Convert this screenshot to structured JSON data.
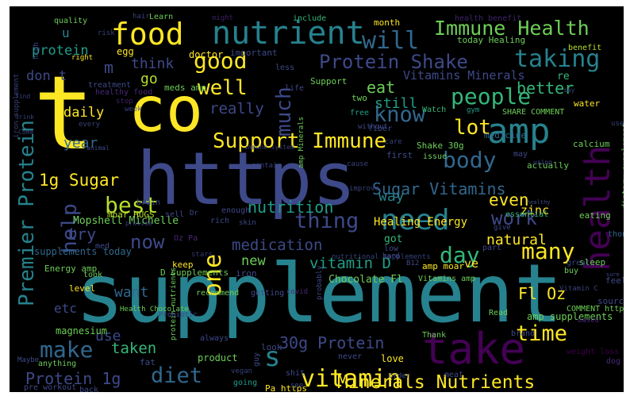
{
  "palette": {
    "background": "#000000",
    "yellow": "#fde725",
    "lime": "#b5de2b",
    "green": "#6ece58",
    "sea": "#35b779",
    "teal": "#1f9e89",
    "cyan": "#26828e",
    "blue": "#31688e",
    "indigo": "#3e4989",
    "violet": "#482878",
    "purple": "#440154"
  },
  "words": [
    "supplement",
    "https",
    "t",
    "co",
    "take",
    "amp",
    "nutrient",
    "food",
    "health",
    "need",
    "Protein Shake",
    "Immune Health",
    "Support Immune",
    "people",
    "taking",
    "will",
    "know",
    "good",
    "body",
    "one",
    "time",
    "vitamin",
    "Premier Protein",
    "diet",
    "make",
    "day",
    "best",
    "s",
    "many",
    "thing",
    "work",
    "well",
    "lot",
    "much",
    "help",
    "Minerals Nutrients",
    "Sugar Vitamins",
    "30g Protein",
    "Vitamins Minerals",
    "Protein 1g",
    "now",
    "natural",
    "nutrition",
    "1g Sugar",
    "daily",
    "medication",
    "vitamin D",
    "Fl Oz",
    "protein",
    "try",
    "really",
    "better",
    "year",
    "even",
    "still",
    "eat",
    "think",
    "go",
    "m",
    "don t",
    "u",
    "way",
    "taken",
    "want",
    "use",
    "new",
    "etc",
    "Healing Energy",
    "Mopshell Michelle",
    "supplements today",
    "Energy amp",
    "ve",
    "zinc",
    "Shake 30g",
    "got",
    "amp supplements",
    "Chocolate Fl",
    "magnesium",
    "level",
    "doctor",
    "include",
    "month",
    "Learn",
    "quality",
    "high",
    "egg",
    "might",
    "important",
    "Support",
    "less",
    "life",
    "health benefit",
    "today Healing",
    "benefit",
    "re",
    "Watch",
    "SHARE COMMENT",
    "water",
    "fiber",
    "two",
    "gym",
    "free",
    "first",
    "issue",
    "medicine",
    "calcium",
    "dietary supplement",
    "actually",
    "may",
    "using",
    "D supplements",
    "eating",
    "essential",
    "B12",
    "amp moar",
    "sleep",
    "Vitamins amp",
    "source",
    "feel",
    "COMMENT https",
    "Read",
    "brand",
    "weight loss",
    "dog",
    "meat",
    "Pa https",
    "love",
    "Thank",
    "always",
    "product",
    "look",
    "fat",
    "vegan",
    "going",
    "never",
    "back",
    "pre workout",
    "Maybe",
    "anything",
    "covid",
    "iron",
    "recommend",
    "moar HUGS",
    "sell",
    "rich",
    "enough",
    "Dr",
    "brain",
    "med",
    "stars",
    "Oz Pa",
    "keep",
    "took",
    "meds amp",
    "treatment",
    "stop",
    "right",
    "risk",
    "hair",
    "iron supplement",
    "find",
    "drink",
    "Come",
    "every",
    "week",
    "animal",
    "immune system",
    "contain",
    "amp Minerals",
    "cause",
    "improve",
    "care",
    "without",
    "used",
    "say",
    "though",
    "low",
    "hard",
    "part",
    "buy",
    "great",
    "sure",
    "Vitamin C",
    "based",
    "pay",
    "order",
    "shit",
    "guy",
    "see",
    "nutritional supplements",
    "probably",
    "getting",
    "skin",
    "provide",
    "protein nutrients",
    "Health Chocolate",
    "Probiotic",
    "healthy",
    "healthy food",
    "give",
    "may"
  ]
}
